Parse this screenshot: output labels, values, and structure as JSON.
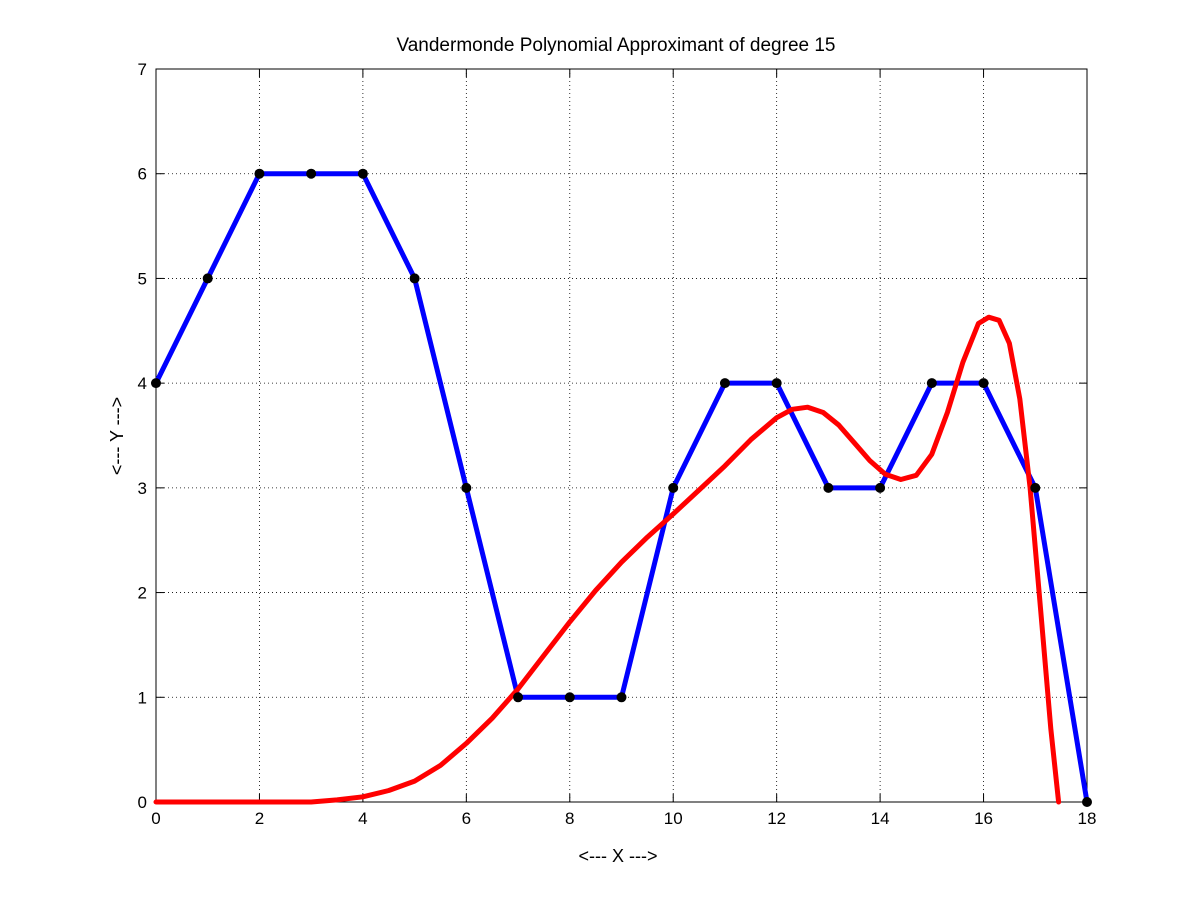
{
  "chart_data": {
    "type": "line",
    "title": "Vandermonde Polynomial Approximant of degree 15",
    "xlabel": "<--- X --->",
    "ylabel": "<--- Y --->",
    "xlim": [
      0,
      18
    ],
    "ylim": [
      0,
      7
    ],
    "xticks": [
      0,
      2,
      4,
      6,
      8,
      10,
      12,
      14,
      16,
      18
    ],
    "yticks": [
      0,
      1,
      2,
      3,
      4,
      5,
      6,
      7
    ],
    "grid": true,
    "series": [
      {
        "color": "#0000ff",
        "marker_color": "#000000",
        "markers": true,
        "x": [
          0,
          1,
          2,
          3,
          4,
          5,
          6,
          7,
          8,
          9,
          10,
          11,
          12,
          13,
          14,
          15,
          16,
          17,
          18
        ],
        "y": [
          4,
          5,
          6,
          6,
          6,
          5,
          3,
          1,
          1,
          1,
          3,
          4,
          4,
          3,
          3,
          4,
          4,
          3,
          0
        ]
      },
      {
        "color": "#ff0000",
        "markers": false,
        "x": [
          0,
          1,
          2,
          3,
          3.5,
          4,
          4.5,
          5,
          5.5,
          6,
          6.5,
          7,
          7.5,
          8,
          8.5,
          9,
          9.5,
          10,
          10.5,
          11,
          11.5,
          12,
          12.3,
          12.6,
          12.9,
          13.2,
          13.5,
          13.8,
          14.1,
          14.4,
          14.7,
          15,
          15.3,
          15.6,
          15.9,
          16.1,
          16.3,
          16.5,
          16.7,
          16.9,
          17.1,
          17.3,
          17.45
        ],
        "y": [
          0,
          0,
          0,
          0,
          0.02,
          0.05,
          0.11,
          0.2,
          0.35,
          0.56,
          0.8,
          1.08,
          1.4,
          1.72,
          2.02,
          2.29,
          2.53,
          2.75,
          2.98,
          3.21,
          3.46,
          3.67,
          3.75,
          3.77,
          3.72,
          3.6,
          3.43,
          3.26,
          3.13,
          3.08,
          3.12,
          3.32,
          3.72,
          4.2,
          4.57,
          4.63,
          4.6,
          4.38,
          3.85,
          3.0,
          1.85,
          0.7,
          0
        ]
      }
    ]
  }
}
